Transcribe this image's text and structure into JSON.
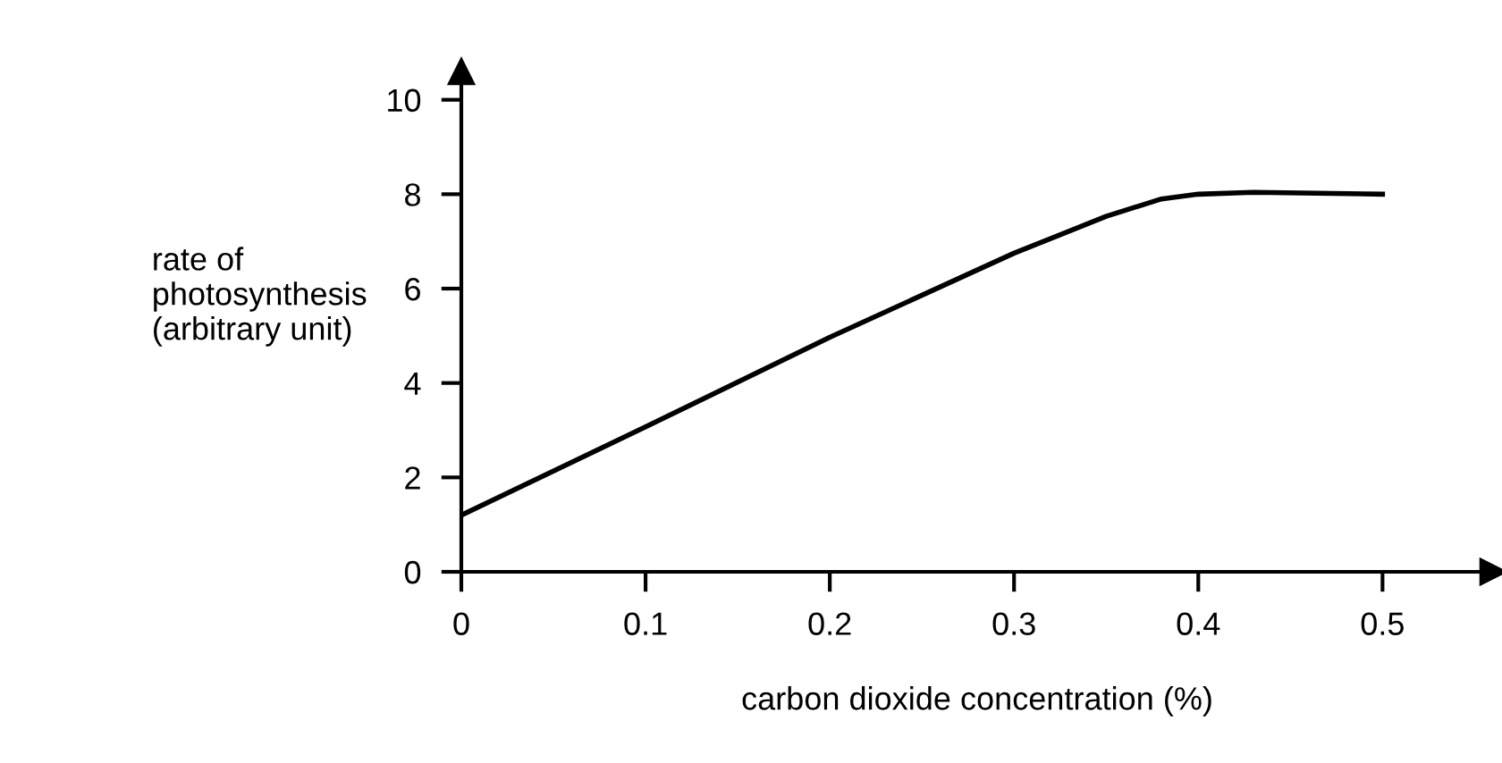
{
  "chart_data": {
    "type": "line",
    "xlabel": "carbon dioxide concentration (%)",
    "ylabel": "rate of\nphotosynthesis\n(arbitrary unit)",
    "x": [
      0,
      0.1,
      0.2,
      0.3,
      0.35,
      0.38,
      0.4,
      0.43,
      0.5
    ],
    "series": [
      {
        "color": "#000000",
        "values": [
          1.2,
          3.07,
          4.97,
          6.75,
          7.53,
          7.9,
          8.0,
          8.04,
          8.0
        ]
      }
    ],
    "xlim": [
      0,
      0.56
    ],
    "ylim": [
      0,
      10.6
    ],
    "xticks": [
      0,
      0.1,
      0.2,
      0.3,
      0.4,
      0.5
    ],
    "yticks": [
      0,
      2,
      4,
      6,
      8,
      10
    ],
    "grid": false,
    "legend": false,
    "marker": "none",
    "line_style": "solid"
  }
}
